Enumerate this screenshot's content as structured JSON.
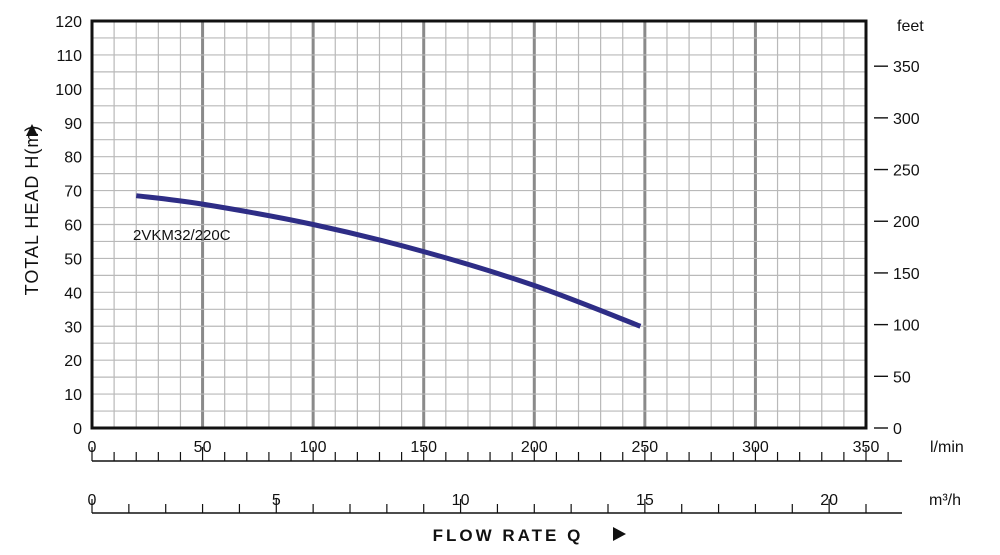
{
  "chart_data": {
    "type": "line",
    "title": "",
    "ylabel": "TOTAL HEAD H(m)",
    "xlabel": "FLOW  RATE Q",
    "x_units": {
      "primary": "l/min",
      "secondary": "m³/h"
    },
    "y_units": {
      "secondary": "feet"
    },
    "xlim": [
      0,
      350
    ],
    "ylim": [
      0,
      120
    ],
    "xlim_m3h": [
      0,
      21
    ],
    "ylim_feet": [
      0,
      393.7
    ],
    "x_ticks_lmin": [
      "0",
      "50",
      "100",
      "150",
      "200",
      "250",
      "300",
      "350"
    ],
    "x_ticks_m3h": [
      "0",
      "5",
      "10",
      "15",
      "20"
    ],
    "y_ticks_m": [
      "0",
      "10",
      "20",
      "30",
      "40",
      "50",
      "60",
      "70",
      "80",
      "90",
      "100",
      "110",
      "120"
    ],
    "y_ticks_feet": [
      "0",
      "50",
      "100",
      "150",
      "200",
      "250",
      "300",
      "350"
    ],
    "grid": true,
    "series": [
      {
        "name": "2VKM32/220C",
        "color": "#2e2d86",
        "x": [
          20,
          50,
          100,
          150,
          200,
          248
        ],
        "y": [
          68.5,
          66,
          60,
          52,
          42,
          30
        ]
      }
    ]
  }
}
